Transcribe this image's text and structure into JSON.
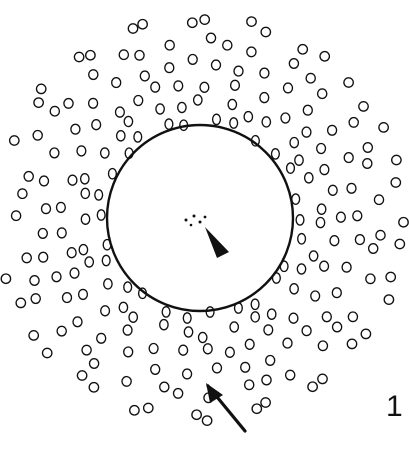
{
  "figure": {
    "panel_label": "1",
    "colors": {
      "ink": "#111111",
      "background": "#ffffff"
    },
    "elements": {
      "central_circle": "central-circle",
      "surrounding_particles": "particle-ring",
      "center_arrow": "arrowhead-icon",
      "outer_arrow": "arrow-icon"
    }
  }
}
